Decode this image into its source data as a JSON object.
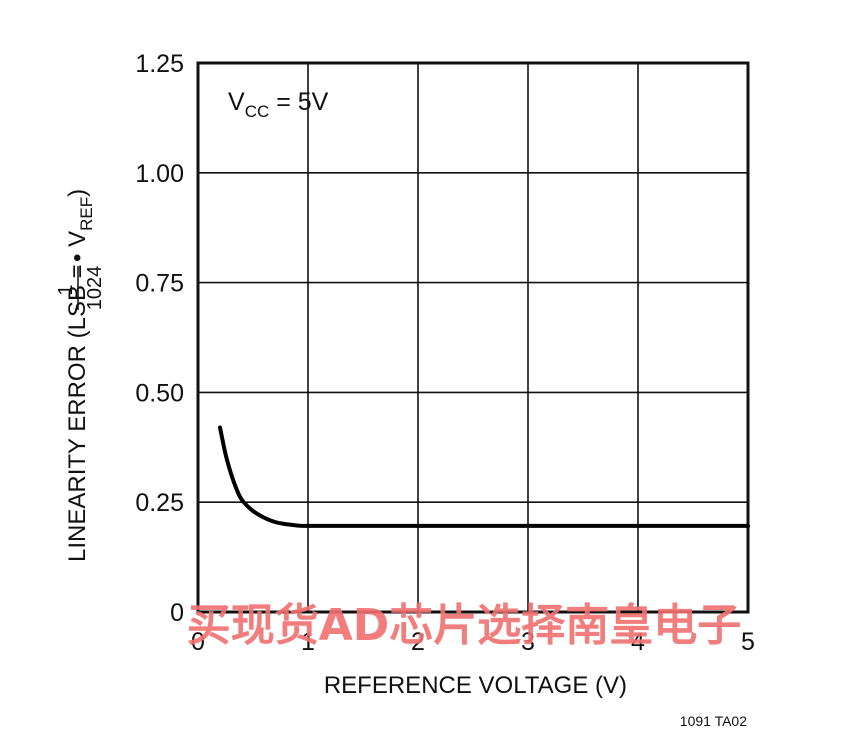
{
  "chart_data": {
    "type": "line",
    "xlabel": "REFERENCE VOLTAGE (V)",
    "ylabel": {
      "prefix": "LINEARITY ERROR (LSB = ",
      "frac_num": "1",
      "frac_den": "1024",
      "dot": " • V",
      "sub": "REF",
      "suffix": ")"
    },
    "annotation": {
      "main": "V",
      "sub": "CC",
      "rest": " = 5V"
    },
    "xlim": [
      0,
      5
    ],
    "ylim": [
      0,
      1.25
    ],
    "x_ticks": [
      0,
      1,
      2,
      3,
      4,
      5
    ],
    "x_tick_labels": [
      "0",
      "1",
      "2",
      "3",
      "4",
      "5"
    ],
    "y_ticks": [
      0,
      0.25,
      0.5,
      0.75,
      1.0,
      1.25
    ],
    "y_tick_labels": [
      "0",
      "0.25",
      "0.50",
      "0.75",
      "1.00",
      "1.25"
    ],
    "grid": true,
    "series": [
      {
        "x": [
          0.2,
          0.25,
          0.3,
          0.35,
          0.4,
          0.5,
          0.6,
          0.7,
          0.8,
          0.9,
          1.0,
          1.5,
          2.0,
          3.0,
          4.0,
          5.0
        ],
        "y": [
          0.42,
          0.36,
          0.315,
          0.28,
          0.255,
          0.23,
          0.215,
          0.205,
          0.2,
          0.197,
          0.196,
          0.196,
          0.196,
          0.196,
          0.196,
          0.196
        ]
      }
    ]
  },
  "figure_code": "1091 TA02",
  "watermark": "买现货AD芯片选择南皇电子"
}
